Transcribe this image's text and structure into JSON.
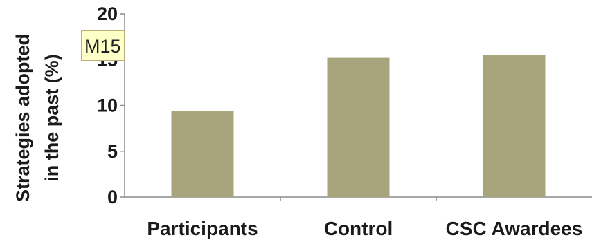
{
  "chart_data": {
    "type": "bar",
    "categories": [
      "Participants",
      "Control",
      "CSC Awardees"
    ],
    "values": [
      9.4,
      15.2,
      15.5
    ],
    "ylabel_lines": [
      "Strategies adopted",
      "in the past (%)"
    ],
    "ylim": [
      0,
      20
    ],
    "yticks": [
      "0",
      "5",
      "10",
      "15",
      "20"
    ],
    "grid": false,
    "bar_color": "#a8a47c",
    "axis_color": "#8c8c8c"
  },
  "comment": {
    "label": "M15"
  }
}
